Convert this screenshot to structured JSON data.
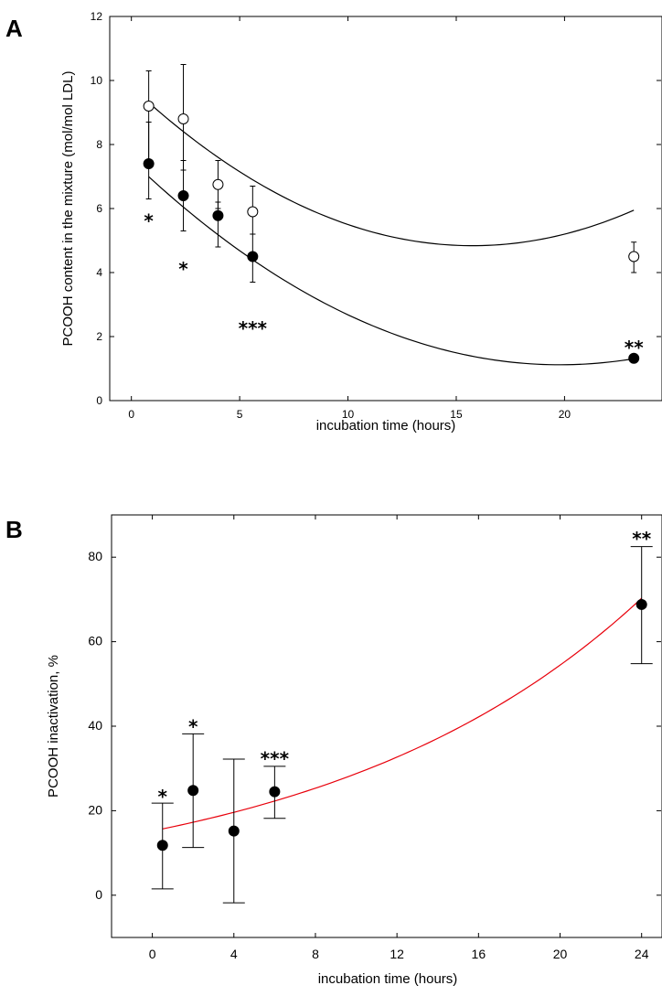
{
  "chart_data": [
    {
      "type": "scatter",
      "panel_label": "A",
      "xlabel": "incubation time (hours)",
      "ylabel": "PCOOH content in the mixture (mol/mol LDL)",
      "xlim": [
        -1,
        24.5
      ],
      "ylim": [
        0,
        12
      ],
      "xticks": [
        0,
        5,
        10,
        15,
        20
      ],
      "yticks": [
        0,
        2,
        4,
        6,
        8,
        10,
        12
      ],
      "series": [
        {
          "marker": "open-circle",
          "x": [
            0.8,
            2.4,
            4.0,
            5.6,
            23.2
          ],
          "y": [
            9.2,
            8.8,
            6.75,
            5.9,
            4.5
          ],
          "err_low": [
            7.4,
            7.2,
            6.0,
            5.2,
            4.0
          ],
          "err_high": [
            10.3,
            10.5,
            7.5,
            6.7,
            4.95
          ],
          "fit": {
            "type": "quadratic",
            "a": 0.02,
            "b": -0.63,
            "c": 9.8,
            "x_from": 0.8,
            "x_to": 23.2
          }
        },
        {
          "marker": "filled-circle",
          "x": [
            0.8,
            2.4,
            4.0,
            5.6,
            23.2
          ],
          "y": [
            7.4,
            6.4,
            5.78,
            4.5,
            1.32
          ],
          "err_low": [
            6.3,
            5.3,
            4.8,
            3.7,
            1.2
          ],
          "err_high": [
            8.7,
            7.5,
            6.2,
            5.2,
            1.45
          ],
          "fit": {
            "type": "quadratic",
            "a": 0.0163,
            "b": -0.645,
            "c": 7.5,
            "x_from": 0.8,
            "x_to": 23.2
          }
        }
      ],
      "annotations": [
        {
          "text": "*",
          "x": 0.8,
          "y": 5.7
        },
        {
          "text": "*",
          "x": 2.4,
          "y": 4.2
        },
        {
          "text": "***",
          "x": 5.6,
          "y": 2.35
        },
        {
          "text": "**",
          "x": 23.2,
          "y": 1.75
        }
      ],
      "text_color": "#000000",
      "fit_color": "#000000"
    },
    {
      "type": "scatter",
      "panel_label": "B",
      "xlabel": "incubation time (hours)",
      "ylabel": "PCOOH inactivation, %",
      "xlim": [
        -2,
        25
      ],
      "ylim": [
        -10,
        90
      ],
      "xticks": [
        0,
        4,
        8,
        12,
        16,
        20,
        24
      ],
      "yticks": [
        0,
        20,
        40,
        60,
        80
      ],
      "series": [
        {
          "marker": "filled-circle",
          "x": [
            0.5,
            2.0,
            4.0,
            6.0,
            24.0
          ],
          "y": [
            11.8,
            24.8,
            15.2,
            24.5,
            68.8
          ],
          "err_low": [
            1.5,
            11.3,
            -1.8,
            18.2,
            54.8
          ],
          "err_high": [
            21.8,
            38.2,
            32.2,
            30.5,
            82.5
          ],
          "fit": {
            "type": "exponential",
            "A": 15.2,
            "k": 0.0638,
            "x_from": 0.5,
            "x_to": 24.0
          }
        }
      ],
      "annotations": [
        {
          "text": "*",
          "x": 0.5,
          "y": 24.0
        },
        {
          "text": "*",
          "x": 2.0,
          "y": 40.5
        },
        {
          "text": "***",
          "x": 6.0,
          "y": 33.0
        },
        {
          "text": "**",
          "x": 24.0,
          "y": 85.0
        }
      ],
      "text_color": "#000000",
      "fit_color": "#e8000b"
    }
  ]
}
